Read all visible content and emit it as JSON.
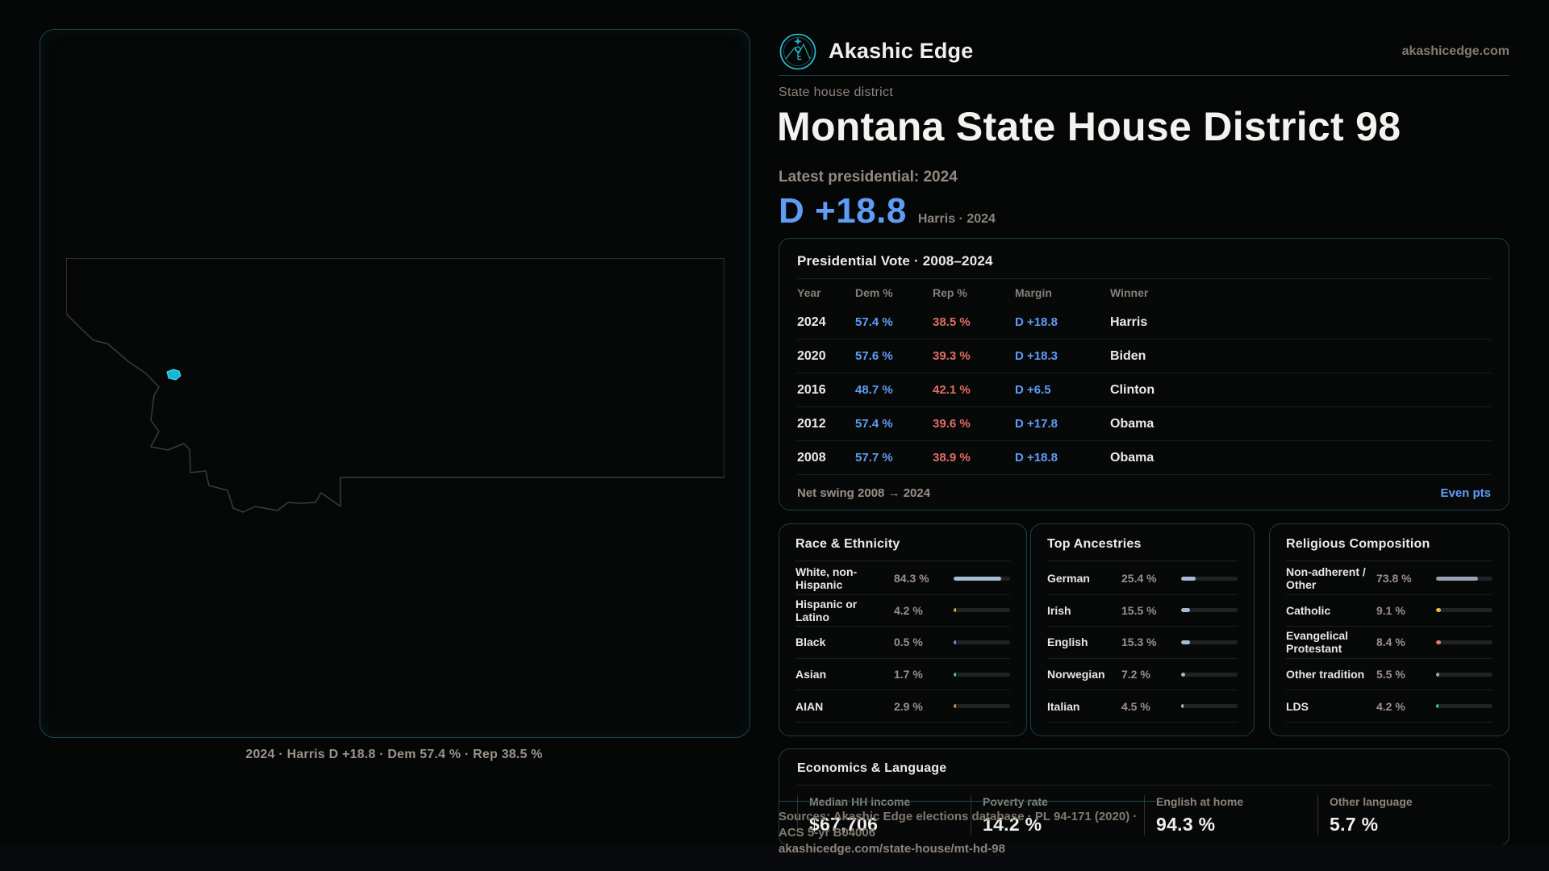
{
  "header": {
    "brand": "Akashic Edge",
    "domain": "akashicedge.com"
  },
  "hero": {
    "eyebrow": "State house district",
    "title": "Montana State House District 98",
    "subtitle": "Latest presidential: 2024",
    "lead_margin": "D +18.8",
    "lead_context": "Harris · 2024"
  },
  "map": {
    "caption": "2024 · Harris D +18.8 · Dem 57.4 % · Rep 38.5 %"
  },
  "presidential": {
    "title": "Presidential Vote · 2008–2024",
    "columns": [
      "Year",
      "Dem %",
      "Rep %",
      "Margin",
      "Winner"
    ],
    "rows": [
      {
        "year": "2024",
        "dem": "57.4 %",
        "rep": "38.5 %",
        "margin": "D +18.8",
        "winner": "Harris"
      },
      {
        "year": "2020",
        "dem": "57.6 %",
        "rep": "39.3 %",
        "margin": "D +18.3",
        "winner": "Biden"
      },
      {
        "year": "2016",
        "dem": "48.7 %",
        "rep": "42.1 %",
        "margin": "D +6.5",
        "winner": "Clinton"
      },
      {
        "year": "2012",
        "dem": "57.4 %",
        "rep": "39.6 %",
        "margin": "D +17.8",
        "winner": "Obama"
      },
      {
        "year": "2008",
        "dem": "57.7 %",
        "rep": "38.9 %",
        "margin": "D +18.8",
        "winner": "Obama"
      }
    ],
    "footer_label": "Net swing 2008 → 2024",
    "footer_value": "Even pts"
  },
  "race": {
    "title": "Race & Ethnicity",
    "rows": [
      {
        "label": "White, non-Hispanic",
        "value": "84.3 %",
        "pct": 84.3,
        "color": "#a7bbd2"
      },
      {
        "label": "Hispanic or Latino",
        "value": "4.2 %",
        "pct": 4.2,
        "color": "#e2a23c"
      },
      {
        "label": "Black",
        "value": "0.5 %",
        "pct": 0.5,
        "color": "#8c84e2"
      },
      {
        "label": "Asian",
        "value": "1.7 %",
        "pct": 1.7,
        "color": "#43c9a2"
      },
      {
        "label": "AIAN",
        "value": "2.9 %",
        "pct": 2.9,
        "color": "#e28a3c"
      }
    ]
  },
  "ancestries": {
    "title": "Top Ancestries",
    "rows": [
      {
        "label": "German",
        "value": "25.4 %",
        "pct": 25.4,
        "color": "#a7bbd2"
      },
      {
        "label": "Irish",
        "value": "15.5 %",
        "pct": 15.5,
        "color": "#a7bbd2"
      },
      {
        "label": "English",
        "value": "15.3 %",
        "pct": 15.3,
        "color": "#a7bbd2"
      },
      {
        "label": "Norwegian",
        "value": "7.2 %",
        "pct": 7.2,
        "color": "#a7bbd2"
      },
      {
        "label": "Italian",
        "value": "4.5 %",
        "pct": 4.5,
        "color": "#a7bbd2"
      }
    ]
  },
  "religion": {
    "title": "Religious Composition",
    "rows": [
      {
        "label": "Non-adherent / Other",
        "value": "73.8 %",
        "pct": 73.8,
        "color": "#98a2b3"
      },
      {
        "label": "Catholic",
        "value": "9.1 %",
        "pct": 9.1,
        "color": "#e0bc3a"
      },
      {
        "label": "Evangelical Protestant",
        "value": "8.4 %",
        "pct": 8.4,
        "color": "#e27c72"
      },
      {
        "label": "Other tradition",
        "value": "5.5 %",
        "pct": 5.5,
        "color": "#98a0a8"
      },
      {
        "label": "LDS",
        "value": "4.2 %",
        "pct": 4.2,
        "color": "#36c8a2"
      }
    ]
  },
  "economics": {
    "title": "Economics & Language",
    "stats": [
      {
        "label": "Median HH income",
        "value": "$67,706"
      },
      {
        "label": "Poverty rate",
        "value": "14.2 %"
      },
      {
        "label": "English at home",
        "value": "94.3 %"
      },
      {
        "label": "Other language",
        "value": "5.7 %"
      }
    ]
  },
  "source_footer": {
    "line1": "Sources: Akashic Edge elections database · PL 94-171 (2020) · ACS 5-yr B04006",
    "line2": "akashicedge.com/state-house/mt-hd-98"
  },
  "colors": {
    "accent_teal": "#29c4d7",
    "dem_blue": "#5f9df5",
    "rep_red": "#e26d64",
    "bar_neutral": "#a7bbd2",
    "panel_border": "#1a4049",
    "muted_text": "#8d847b"
  }
}
